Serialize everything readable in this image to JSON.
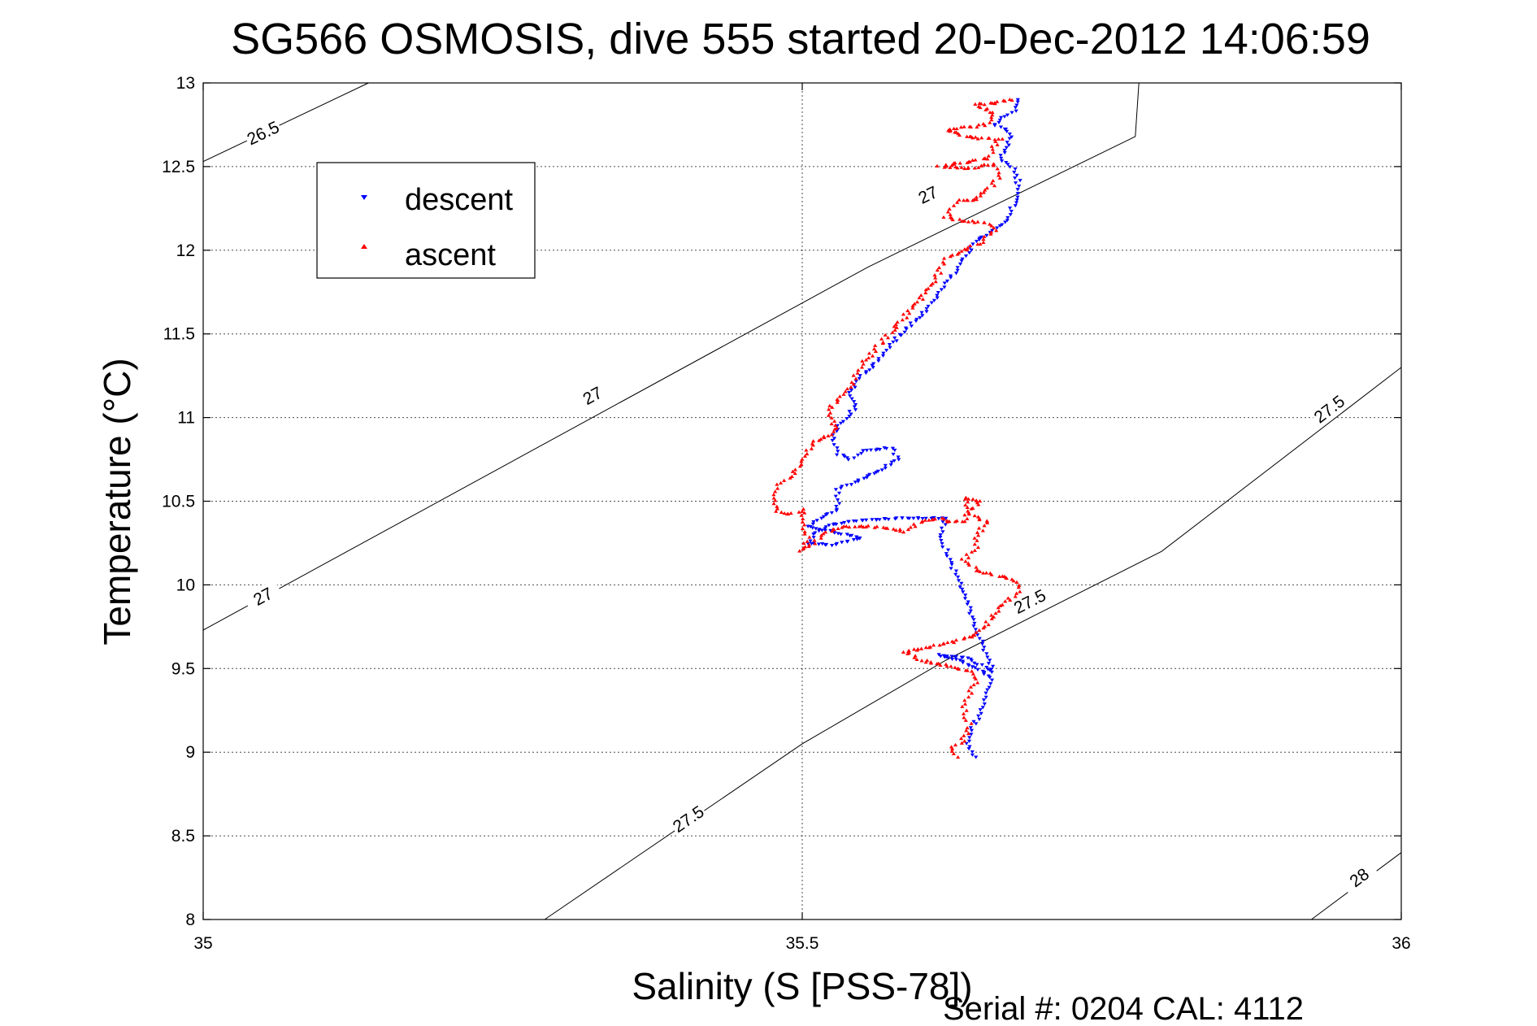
{
  "chart_data": {
    "type": "scatter",
    "title": "SG566 OSMOSIS, dive 555 started 20-Dec-2012 14:06:59",
    "xlabel": "Salinity (S [PSS-78])",
    "ylabel": "Temperature (°C)",
    "xlim": [
      35,
      36
    ],
    "ylim": [
      8,
      13
    ],
    "xticks": [
      "35",
      "35.5",
      "36"
    ],
    "yticks": [
      "8",
      "8.5",
      "9",
      "9.5",
      "10",
      "10.5",
      "11",
      "11.5",
      "12",
      "12.5",
      "13"
    ],
    "grid": true,
    "legend_position": "top-left",
    "footer": "Serial #: 0204  CAL: 4112",
    "isopycnals": [
      {
        "label": "26.5",
        "points": [
          [
            35.0,
            12.53
          ],
          [
            35.138,
            13.0
          ]
        ],
        "labels_at": [
          [
            35.05,
            12.7
          ]
        ]
      },
      {
        "label": "27",
        "points": [
          [
            35.0,
            9.73
          ],
          [
            35.555,
            11.9
          ],
          [
            35.778,
            12.68
          ],
          [
            35.781,
            13.0
          ]
        ],
        "labels_at": [
          [
            35.05,
            9.93
          ],
          [
            35.325,
            11.13
          ],
          [
            35.605,
            12.33
          ]
        ]
      },
      {
        "label": "27.5",
        "points": [
          [
            35.285,
            8.0
          ],
          [
            35.5,
            9.05
          ],
          [
            35.62,
            9.55
          ],
          [
            35.8,
            10.2
          ],
          [
            36.0,
            11.3
          ]
        ],
        "labels_at": [
          [
            35.405,
            8.6
          ],
          [
            35.69,
            9.9
          ],
          [
            35.94,
            11.05
          ]
        ]
      },
      {
        "label": "28",
        "points": [
          [
            35.925,
            8.0
          ],
          [
            36.0,
            8.4
          ]
        ],
        "labels_at": [
          [
            35.965,
            8.25
          ]
        ]
      }
    ],
    "series": [
      {
        "name": "descent",
        "color": "#0000ff",
        "marker": "triangle-down",
        "path": [
          [
            35.645,
            8.97
          ],
          [
            35.638,
            9.05
          ],
          [
            35.642,
            9.15
          ],
          [
            35.65,
            9.25
          ],
          [
            35.655,
            9.35
          ],
          [
            35.658,
            9.45
          ],
          [
            35.64,
            9.52
          ],
          [
            35.625,
            9.56
          ],
          [
            35.615,
            9.58
          ],
          [
            35.62,
            9.57
          ],
          [
            35.635,
            9.57
          ],
          [
            35.65,
            9.52
          ],
          [
            35.66,
            9.48
          ],
          [
            35.615,
            10.3
          ],
          [
            35.62,
            10.4
          ],
          [
            35.59,
            10.4
          ],
          [
            35.56,
            10.39
          ],
          [
            35.54,
            10.38
          ],
          [
            35.52,
            10.35
          ],
          [
            35.51,
            10.3
          ],
          [
            35.505,
            10.25
          ],
          [
            35.525,
            10.24
          ],
          [
            35.55,
            10.28
          ],
          [
            35.505,
            10.35
          ],
          [
            35.515,
            10.4
          ],
          [
            35.53,
            10.45
          ],
          [
            35.53,
            10.57
          ],
          [
            35.545,
            10.62
          ],
          [
            35.565,
            10.68
          ],
          [
            35.58,
            10.75
          ],
          [
            35.575,
            10.82
          ],
          [
            35.55,
            10.8
          ],
          [
            35.54,
            10.75
          ],
          [
            35.53,
            10.78
          ],
          [
            35.525,
            10.88
          ],
          [
            35.53,
            10.95
          ],
          [
            35.54,
            11.02
          ],
          [
            35.545,
            11.08
          ],
          [
            35.54,
            11.15
          ],
          [
            35.55,
            11.25
          ],
          [
            35.565,
            11.35
          ],
          [
            35.575,
            11.45
          ],
          [
            35.59,
            11.55
          ],
          [
            35.605,
            11.65
          ],
          [
            35.615,
            11.75
          ],
          [
            35.625,
            11.85
          ],
          [
            35.635,
            11.95
          ],
          [
            35.645,
            12.05
          ],
          [
            35.66,
            12.12
          ],
          [
            35.67,
            12.18
          ],
          [
            35.675,
            12.25
          ],
          [
            35.68,
            12.32
          ],
          [
            35.68,
            12.42
          ],
          [
            35.675,
            12.5
          ],
          [
            35.665,
            12.55
          ],
          [
            35.67,
            12.6
          ],
          [
            35.675,
            12.68
          ],
          [
            35.67,
            12.72
          ],
          [
            35.66,
            12.75
          ],
          [
            35.665,
            12.78
          ],
          [
            35.675,
            12.82
          ],
          [
            35.68,
            12.87
          ],
          [
            35.68,
            12.9
          ]
        ],
        "jitter": 0.004
      },
      {
        "name": "ascent",
        "color": "#ff0000",
        "marker": "triangle-up",
        "path": [
          [
            35.675,
            12.9
          ],
          [
            35.66,
            12.88
          ],
          [
            35.645,
            12.87
          ],
          [
            35.66,
            12.82
          ],
          [
            35.655,
            12.76
          ],
          [
            35.645,
            12.74
          ],
          [
            35.62,
            12.72
          ],
          [
            35.635,
            12.68
          ],
          [
            35.665,
            12.66
          ],
          [
            35.66,
            12.62
          ],
          [
            35.655,
            12.55
          ],
          [
            35.63,
            12.52
          ],
          [
            35.615,
            12.5
          ],
          [
            35.64,
            12.49
          ],
          [
            35.66,
            12.52
          ],
          [
            35.665,
            12.45
          ],
          [
            35.66,
            12.4
          ],
          [
            35.645,
            12.3
          ],
          [
            35.63,
            12.3
          ],
          [
            35.625,
            12.25
          ],
          [
            35.62,
            12.2
          ],
          [
            35.63,
            12.18
          ],
          [
            35.655,
            12.16
          ],
          [
            35.66,
            12.12
          ],
          [
            35.65,
            12.05
          ],
          [
            35.635,
            12.0
          ],
          [
            35.62,
            11.95
          ],
          [
            35.615,
            11.88
          ],
          [
            35.61,
            11.8
          ],
          [
            35.6,
            11.72
          ],
          [
            35.59,
            11.64
          ],
          [
            35.58,
            11.56
          ],
          [
            35.57,
            11.48
          ],
          [
            35.56,
            11.4
          ],
          [
            35.55,
            11.32
          ],
          [
            35.545,
            11.25
          ],
          [
            35.54,
            11.18
          ],
          [
            35.53,
            11.1
          ],
          [
            35.52,
            11.05
          ],
          [
            35.525,
            10.98
          ],
          [
            35.53,
            10.94
          ],
          [
            35.525,
            10.9
          ],
          [
            35.51,
            10.86
          ],
          [
            35.505,
            10.8
          ],
          [
            35.5,
            10.72
          ],
          [
            35.49,
            10.65
          ],
          [
            35.48,
            10.6
          ],
          [
            35.475,
            10.5
          ],
          [
            35.48,
            10.44
          ],
          [
            35.49,
            10.42
          ],
          [
            35.5,
            10.45
          ],
          [
            35.5,
            10.38
          ],
          [
            35.505,
            10.28
          ],
          [
            35.5,
            10.2
          ],
          [
            35.51,
            10.25
          ],
          [
            35.52,
            10.32
          ],
          [
            35.535,
            10.35
          ],
          [
            35.56,
            10.35
          ],
          [
            35.585,
            10.32
          ],
          [
            35.6,
            10.38
          ],
          [
            35.615,
            10.4
          ],
          [
            35.62,
            10.38
          ],
          [
            35.635,
            10.38
          ],
          [
            35.64,
            10.45
          ],
          [
            35.65,
            10.5
          ],
          [
            35.635,
            10.52
          ],
          [
            35.64,
            10.42
          ],
          [
            35.655,
            10.38
          ],
          [
            35.645,
            10.3
          ],
          [
            35.645,
            10.22
          ],
          [
            35.635,
            10.15
          ],
          [
            35.645,
            10.09
          ],
          [
            35.655,
            10.07
          ],
          [
            35.665,
            10.05
          ],
          [
            35.68,
            10.02
          ],
          [
            35.68,
            9.96
          ],
          [
            35.665,
            9.86
          ],
          [
            35.655,
            9.78
          ],
          [
            35.645,
            9.7
          ],
          [
            35.625,
            9.66
          ],
          [
            35.6,
            9.62
          ],
          [
            35.585,
            9.6
          ],
          [
            35.6,
            9.55
          ],
          [
            35.62,
            9.52
          ],
          [
            35.64,
            9.48
          ],
          [
            35.645,
            9.42
          ],
          [
            35.64,
            9.35
          ],
          [
            35.635,
            9.25
          ],
          [
            35.64,
            9.15
          ],
          [
            35.635,
            9.08
          ],
          [
            35.625,
            9.02
          ],
          [
            35.63,
            8.97
          ]
        ],
        "jitter": 0.005
      }
    ]
  },
  "legend": {
    "items": [
      {
        "label": "descent",
        "color": "#0000ff",
        "marker": "triangle-down"
      },
      {
        "label": "ascent",
        "color": "#ff0000",
        "marker": "triangle-up"
      }
    ]
  }
}
